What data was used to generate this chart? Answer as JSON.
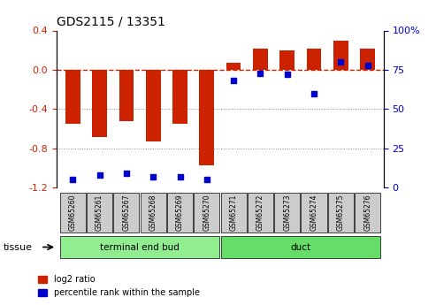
{
  "title": "GDS2115 / 13351",
  "samples": [
    "GSM65260",
    "GSM65261",
    "GSM65267",
    "GSM65268",
    "GSM65269",
    "GSM65270",
    "GSM65271",
    "GSM65272",
    "GSM65273",
    "GSM65274",
    "GSM65275",
    "GSM65276"
  ],
  "log2_ratio": [
    -0.55,
    -0.68,
    -0.52,
    -0.73,
    -0.55,
    -0.97,
    0.07,
    0.22,
    0.2,
    0.22,
    0.3,
    0.22
  ],
  "percentile": [
    5,
    8,
    9,
    7,
    7,
    5,
    68,
    73,
    72,
    60,
    80,
    78
  ],
  "tissue_groups": [
    {
      "label": "terminal end bud",
      "start": 0,
      "end": 6,
      "color": "#90ee90"
    },
    {
      "label": "duct",
      "start": 6,
      "end": 12,
      "color": "#66dd66"
    }
  ],
  "ylim_left": [
    -1.2,
    0.4
  ],
  "ylim_right": [
    0,
    100
  ],
  "bar_color": "#cc2200",
  "dot_color": "#0000cc",
  "zero_line_color": "#cc2200",
  "gridline_color": "#888888",
  "sample_box_color": "#cccccc",
  "tissue_label": "tissue",
  "left_yticks": [
    0.4,
    0.0,
    -0.4,
    -0.8,
    -1.2
  ],
  "right_yticks": [
    100,
    75,
    50,
    25,
    0
  ],
  "legend_log2": "log2 ratio",
  "legend_pct": "percentile rank within the sample"
}
